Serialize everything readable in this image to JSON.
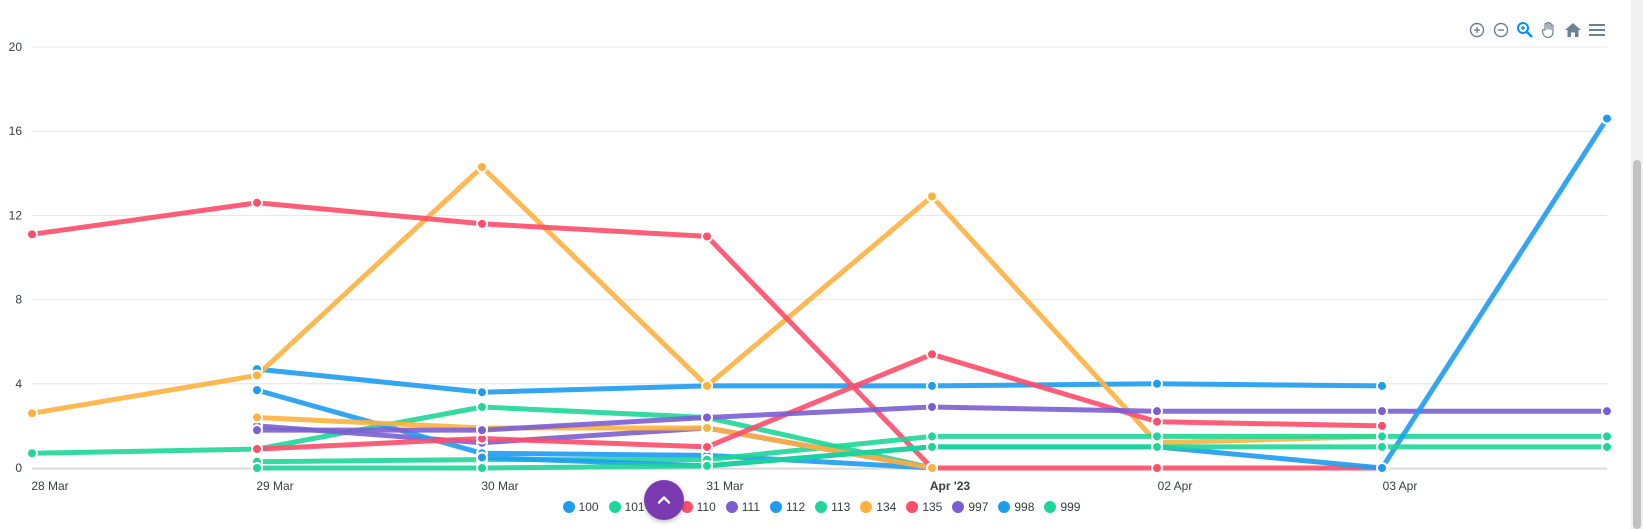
{
  "chart_data": {
    "type": "line",
    "x": [
      "2023-03-28",
      "2023-03-29",
      "2023-03-30",
      "2023-03-31",
      "2023-04-01",
      "2023-04-02",
      "2023-04-03",
      "2023-04-04"
    ],
    "x_tick_labels": [
      "28 Mar",
      "29 Mar",
      "30 Mar",
      "31 Mar",
      "Apr '23",
      "02 Apr",
      "03 Apr"
    ],
    "y_ticks": [
      0,
      4,
      8,
      12,
      16,
      20
    ],
    "ylim": [
      0,
      20
    ],
    "grid": true,
    "legend_position": "bottom",
    "series": [
      {
        "name": "100",
        "color": "#1e9cf0",
        "values": [
          null,
          4.7,
          3.6,
          3.9,
          3.9,
          4.0,
          3.9,
          null
        ]
      },
      {
        "name": "101",
        "color": "#1ed697",
        "values": [
          0.7,
          0.9,
          2.9,
          2.4,
          0.0,
          null,
          null,
          null
        ]
      },
      {
        "name": "",
        "color": "#ffb13f",
        "values": [
          2.6,
          4.4,
          14.3,
          3.9,
          12.9,
          1.2,
          1.5,
          null
        ]
      },
      {
        "name": "110",
        "color": "#ff4d6a",
        "values": [
          11.1,
          12.6,
          11.6,
          11.0,
          0.0,
          0.0,
          0.0,
          null
        ]
      },
      {
        "name": "111",
        "color": "#7b5fd0",
        "values": [
          null,
          2.0,
          1.2,
          1.9,
          0.0,
          null,
          null,
          null
        ]
      },
      {
        "name": "112",
        "color": "#1e9cf0",
        "values": [
          null,
          3.7,
          0.7,
          0.6,
          0.0,
          null,
          null,
          null
        ]
      },
      {
        "name": "113",
        "color": "#1ed697",
        "values": [
          null,
          0.3,
          0.4,
          0.4,
          1.5,
          1.5,
          1.5,
          1.5
        ]
      },
      {
        "name": "134",
        "color": "#ffb13f",
        "values": [
          null,
          2.4,
          1.9,
          1.9,
          0.0,
          null,
          null,
          null
        ]
      },
      {
        "name": "135",
        "color": "#ff4d6a",
        "values": [
          null,
          0.9,
          1.4,
          1.0,
          5.4,
          2.2,
          2.0,
          null
        ]
      },
      {
        "name": "997",
        "color": "#7b5fd0",
        "values": [
          null,
          1.8,
          1.8,
          2.4,
          2.9,
          2.7,
          2.7,
          2.7
        ]
      },
      {
        "name": "998",
        "color": "#1e9cf0",
        "values": [
          null,
          null,
          0.5,
          0.1,
          1.0,
          1.0,
          0.0,
          16.6
        ]
      },
      {
        "name": "999",
        "color": "#1ed697",
        "values": [
          null,
          0.0,
          0.0,
          0.1,
          1.0,
          1.0,
          1.0,
          1.0
        ]
      }
    ]
  },
  "legend": [
    {
      "label": "100",
      "color": "#1e9cf0"
    },
    {
      "label": "101",
      "color": "#1ed697"
    },
    {
      "label": "",
      "color": "#ffb13f"
    },
    {
      "label": "110",
      "color": "#ff4d6a"
    },
    {
      "label": "111",
      "color": "#7b5fd0"
    },
    {
      "label": "112",
      "color": "#1e9cf0"
    },
    {
      "label": "113",
      "color": "#1ed697"
    },
    {
      "label": "134",
      "color": "#ffb13f"
    },
    {
      "label": "135",
      "color": "#ff4d6a"
    },
    {
      "label": "997",
      "color": "#7b5fd0"
    },
    {
      "label": "998",
      "color": "#1e9cf0"
    },
    {
      "label": "999",
      "color": "#1ed697"
    }
  ],
  "toolbar": {
    "icons": [
      "zoom-in-icon",
      "zoom-out-icon",
      "selection-zoom-icon",
      "pan-icon",
      "reset-home-icon",
      "menu-icon"
    ],
    "icon_color": "#6e8192",
    "active_color": "#008ffb"
  },
  "fab": {
    "icon": "chevron-up-icon",
    "color": "#7b3ab0"
  }
}
